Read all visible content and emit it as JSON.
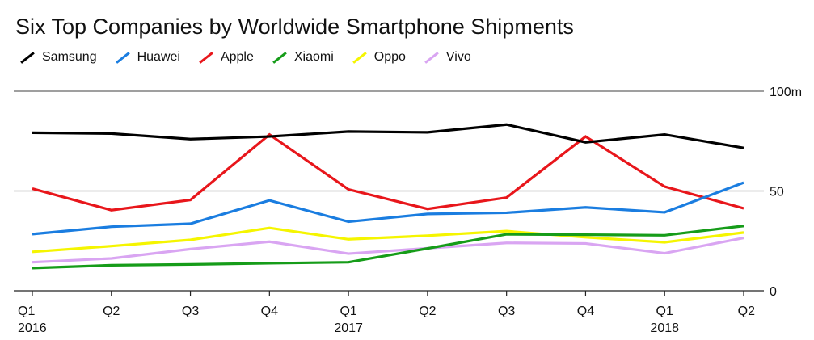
{
  "chart_data": {
    "type": "line",
    "title": "Six Top Companies by Worldwide Smartphone Shipments",
    "ylim": [
      0,
      100
    ],
    "y_ticks": [
      {
        "value": 0,
        "label": "0"
      },
      {
        "value": 50,
        "label": "50"
      },
      {
        "value": 100,
        "label": "100m"
      }
    ],
    "grid": true,
    "legend_position": "top-left",
    "categories": [
      {
        "quarter": "Q1",
        "year": "2016"
      },
      {
        "quarter": "Q2",
        "year": ""
      },
      {
        "quarter": "Q3",
        "year": ""
      },
      {
        "quarter": "Q4",
        "year": ""
      },
      {
        "quarter": "Q1",
        "year": "2017"
      },
      {
        "quarter": "Q2",
        "year": ""
      },
      {
        "quarter": "Q3",
        "year": ""
      },
      {
        "quarter": "Q4",
        "year": ""
      },
      {
        "quarter": "Q1",
        "year": "2018"
      },
      {
        "quarter": "Q2",
        "year": ""
      }
    ],
    "series": [
      {
        "name": "Samsung",
        "color": "#000000",
        "values": [
          79.2,
          78.8,
          76.0,
          77.3,
          79.8,
          79.4,
          83.3,
          74.4,
          78.3,
          71.6
        ]
      },
      {
        "name": "Huawei",
        "color": "#1a7de0",
        "values": [
          28.4,
          32.1,
          33.6,
          45.3,
          34.6,
          38.5,
          39.1,
          41.8,
          39.3,
          54.2
        ]
      },
      {
        "name": "Apple",
        "color": "#e8161b",
        "values": [
          51.2,
          40.4,
          45.5,
          78.3,
          50.8,
          41.0,
          46.7,
          77.3,
          52.2,
          41.3
        ]
      },
      {
        "name": "Xiaomi",
        "color": "#169c19",
        "values": [
          11.4,
          12.8,
          13.2,
          13.8,
          14.3,
          21.2,
          28.3,
          28.1,
          27.8,
          32.5
        ]
      },
      {
        "name": "Oppo",
        "color": "#f5f500",
        "values": [
          19.5,
          22.4,
          25.5,
          31.5,
          25.8,
          27.6,
          29.9,
          26.8,
          24.3,
          29.2
        ]
      },
      {
        "name": "Vivo",
        "color": "#d9a5f2",
        "values": [
          14.3,
          16.2,
          20.9,
          24.6,
          18.6,
          21.3,
          24.0,
          23.7,
          18.8,
          26.5
        ]
      }
    ]
  }
}
